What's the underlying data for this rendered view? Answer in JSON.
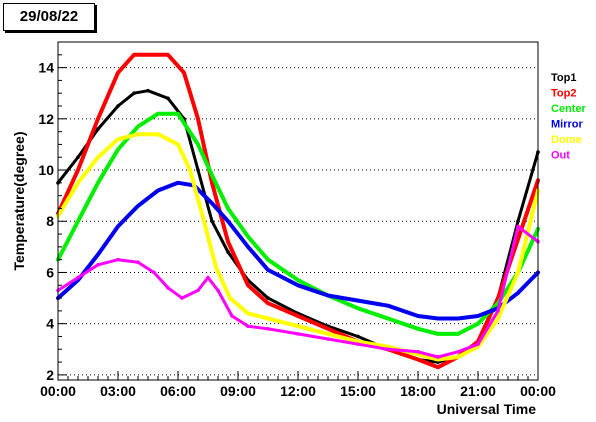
{
  "date_label": "29/08/22",
  "chart_data": {
    "type": "scatter",
    "title": "",
    "xlabel": "Universal Time",
    "ylabel": "Temperature(degree)",
    "x_unit": "hour",
    "xlim": [
      0,
      24
    ],
    "ylim": [
      1.8,
      15.0
    ],
    "x_ticks": [
      {
        "value": 0,
        "label": "00:00"
      },
      {
        "value": 3,
        "label": "03:00"
      },
      {
        "value": 6,
        "label": "06:00"
      },
      {
        "value": 9,
        "label": "09:00"
      },
      {
        "value": 12,
        "label": "12:00"
      },
      {
        "value": 15,
        "label": "15:00"
      },
      {
        "value": 18,
        "label": "18:00"
      },
      {
        "value": 21,
        "label": "21:00"
      },
      {
        "value": 24,
        "label": "00:00"
      }
    ],
    "y_ticks": [
      {
        "value": 2,
        "label": "2"
      },
      {
        "value": 4,
        "label": "4"
      },
      {
        "value": 6,
        "label": "6"
      },
      {
        "value": 8,
        "label": "8"
      },
      {
        "value": 10,
        "label": "10"
      },
      {
        "value": 12,
        "label": "12"
      },
      {
        "value": 14,
        "label": "14"
      }
    ],
    "grid": "horizontal-dotted",
    "legend_position": "right",
    "series": [
      {
        "name": "Top1",
        "color": "#000000",
        "points": [
          [
            0,
            9.5
          ],
          [
            1,
            10.5
          ],
          [
            2,
            11.6
          ],
          [
            3,
            12.5
          ],
          [
            3.8,
            13.0
          ],
          [
            4.5,
            13.1
          ],
          [
            5.5,
            12.8
          ],
          [
            6.3,
            12.0
          ],
          [
            7,
            10.0
          ],
          [
            7.7,
            8.0
          ],
          [
            8.5,
            6.8
          ],
          [
            9.5,
            5.7
          ],
          [
            10.5,
            5.0
          ],
          [
            12,
            4.4
          ],
          [
            13.5,
            3.9
          ],
          [
            15,
            3.5
          ],
          [
            16.5,
            3.0
          ],
          [
            18,
            2.6
          ],
          [
            19,
            2.5
          ],
          [
            20,
            2.7
          ],
          [
            21,
            3.2
          ],
          [
            22,
            5.0
          ],
          [
            23,
            8.0
          ],
          [
            24,
            10.7
          ]
        ]
      },
      {
        "name": "Top2",
        "color": "#ff0000",
        "points": [
          [
            0,
            8.3
          ],
          [
            1,
            10.0
          ],
          [
            2,
            12.0
          ],
          [
            3,
            13.8
          ],
          [
            3.8,
            14.5
          ],
          [
            4.5,
            14.5
          ],
          [
            5.5,
            14.5
          ],
          [
            6.3,
            13.8
          ],
          [
            7,
            12.0
          ],
          [
            7.7,
            9.5
          ],
          [
            8.5,
            7.2
          ],
          [
            9.5,
            5.5
          ],
          [
            10.5,
            4.8
          ],
          [
            12,
            4.3
          ],
          [
            13.5,
            3.8
          ],
          [
            15,
            3.3
          ],
          [
            16.5,
            3.0
          ],
          [
            18,
            2.6
          ],
          [
            19,
            2.3
          ],
          [
            20,
            2.7
          ],
          [
            21,
            3.3
          ],
          [
            22,
            5.0
          ],
          [
            23,
            7.3
          ],
          [
            24,
            9.6
          ]
        ]
      },
      {
        "name": "Center",
        "color": "#00ee00",
        "points": [
          [
            0,
            6.5
          ],
          [
            1,
            8.0
          ],
          [
            2,
            9.5
          ],
          [
            3,
            10.8
          ],
          [
            4,
            11.7
          ],
          [
            5,
            12.2
          ],
          [
            6,
            12.2
          ],
          [
            7,
            11.0
          ],
          [
            7.7,
            9.8
          ],
          [
            8.5,
            8.5
          ],
          [
            9.5,
            7.4
          ],
          [
            10.5,
            6.5
          ],
          [
            12,
            5.7
          ],
          [
            13.5,
            5.1
          ],
          [
            15,
            4.6
          ],
          [
            16.5,
            4.2
          ],
          [
            18,
            3.8
          ],
          [
            19,
            3.6
          ],
          [
            20,
            3.6
          ],
          [
            21,
            4.0
          ],
          [
            22,
            4.8
          ],
          [
            23,
            6.0
          ],
          [
            24,
            7.7
          ]
        ]
      },
      {
        "name": "Mirror",
        "color": "#0000ee",
        "points": [
          [
            0,
            5.0
          ],
          [
            1,
            5.7
          ],
          [
            2,
            6.7
          ],
          [
            3,
            7.8
          ],
          [
            4,
            8.6
          ],
          [
            5,
            9.2
          ],
          [
            6,
            9.5
          ],
          [
            6.8,
            9.4
          ],
          [
            7.7,
            8.7
          ],
          [
            8.5,
            8.0
          ],
          [
            9.5,
            7.0
          ],
          [
            10.5,
            6.1
          ],
          [
            12,
            5.5
          ],
          [
            13.5,
            5.1
          ],
          [
            15,
            4.9
          ],
          [
            16.5,
            4.7
          ],
          [
            18,
            4.3
          ],
          [
            19,
            4.2
          ],
          [
            20,
            4.2
          ],
          [
            21,
            4.3
          ],
          [
            22,
            4.6
          ],
          [
            23,
            5.2
          ],
          [
            24,
            6.0
          ]
        ]
      },
      {
        "name": "Dome",
        "color": "#ffff00",
        "points": [
          [
            0,
            8.2
          ],
          [
            1,
            9.5
          ],
          [
            2,
            10.5
          ],
          [
            3,
            11.2
          ],
          [
            4,
            11.4
          ],
          [
            5,
            11.4
          ],
          [
            6,
            11.0
          ],
          [
            6.6,
            10.0
          ],
          [
            7.3,
            8.0
          ],
          [
            7.9,
            6.2
          ],
          [
            8.6,
            5.0
          ],
          [
            9.5,
            4.4
          ],
          [
            10.5,
            4.2
          ],
          [
            12,
            3.9
          ],
          [
            13.5,
            3.6
          ],
          [
            15,
            3.3
          ],
          [
            16.5,
            3.1
          ],
          [
            18,
            2.8
          ],
          [
            19,
            2.6
          ],
          [
            20,
            2.7
          ],
          [
            21,
            3.1
          ],
          [
            22,
            4.2
          ],
          [
            23,
            6.0
          ],
          [
            24,
            9.2
          ]
        ]
      },
      {
        "name": "Out",
        "color": "#ff00ff",
        "points": [
          [
            0,
            5.3
          ],
          [
            1,
            5.8
          ],
          [
            2,
            6.3
          ],
          [
            3,
            6.5
          ],
          [
            4,
            6.4
          ],
          [
            4.8,
            6.0
          ],
          [
            5.5,
            5.4
          ],
          [
            6.2,
            5.0
          ],
          [
            7,
            5.3
          ],
          [
            7.5,
            5.8
          ],
          [
            8,
            5.3
          ],
          [
            8.7,
            4.3
          ],
          [
            9.5,
            3.9
          ],
          [
            10.5,
            3.8
          ],
          [
            12,
            3.6
          ],
          [
            13.5,
            3.4
          ],
          [
            15,
            3.2
          ],
          [
            16.5,
            3.0
          ],
          [
            18,
            2.9
          ],
          [
            19,
            2.7
          ],
          [
            20,
            2.9
          ],
          [
            21,
            3.2
          ],
          [
            22,
            4.5
          ],
          [
            23,
            7.8
          ],
          [
            24,
            7.2
          ]
        ]
      }
    ]
  }
}
